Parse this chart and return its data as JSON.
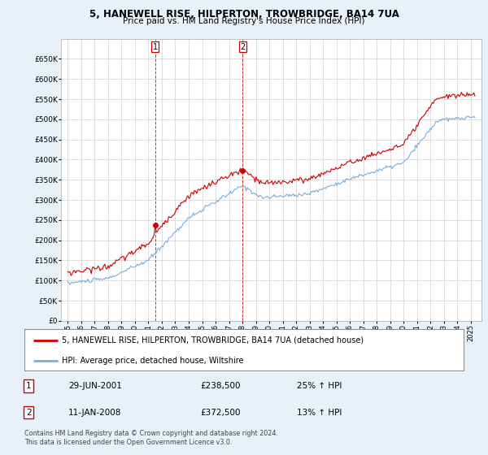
{
  "title": "5, HANEWELL RISE, HILPERTON, TROWBRIDGE, BA14 7UA",
  "subtitle": "Price paid vs. HM Land Registry's House Price Index (HPI)",
  "ylabel_ticks": [
    "£0",
    "£50K",
    "£100K",
    "£150K",
    "£200K",
    "£250K",
    "£300K",
    "£350K",
    "£400K",
    "£450K",
    "£500K",
    "£550K",
    "£600K",
    "£650K"
  ],
  "ytick_values": [
    0,
    50000,
    100000,
    150000,
    200000,
    250000,
    300000,
    350000,
    400000,
    450000,
    500000,
    550000,
    600000,
    650000
  ],
  "ylim": [
    0,
    700000
  ],
  "legend_line1": "5, HANEWELL RISE, HILPERTON, TROWBRIDGE, BA14 7UA (detached house)",
  "legend_line2": "HPI: Average price, detached house, Wiltshire",
  "line1_color": "#cc0000",
  "line2_color": "#7aaddb",
  "point1_label": "1",
  "point1_date": "29-JUN-2001",
  "point1_price": 238500,
  "point1_price_str": "£238,500",
  "point1_pct": "25% ↑ HPI",
  "point2_label": "2",
  "point2_date": "11-JAN-2008",
  "point2_price": 372500,
  "point2_price_str": "£372,500",
  "point2_pct": "13% ↑ HPI",
  "footnote": "Contains HM Land Registry data © Crown copyright and database right 2024.\nThis data is licensed under the Open Government Licence v3.0.",
  "background_color": "#e8f0f8",
  "plot_bg_color": "#ffffff",
  "grid_color": "#d0d0d0",
  "point1_year": 2001.49,
  "point2_year": 2008.03
}
